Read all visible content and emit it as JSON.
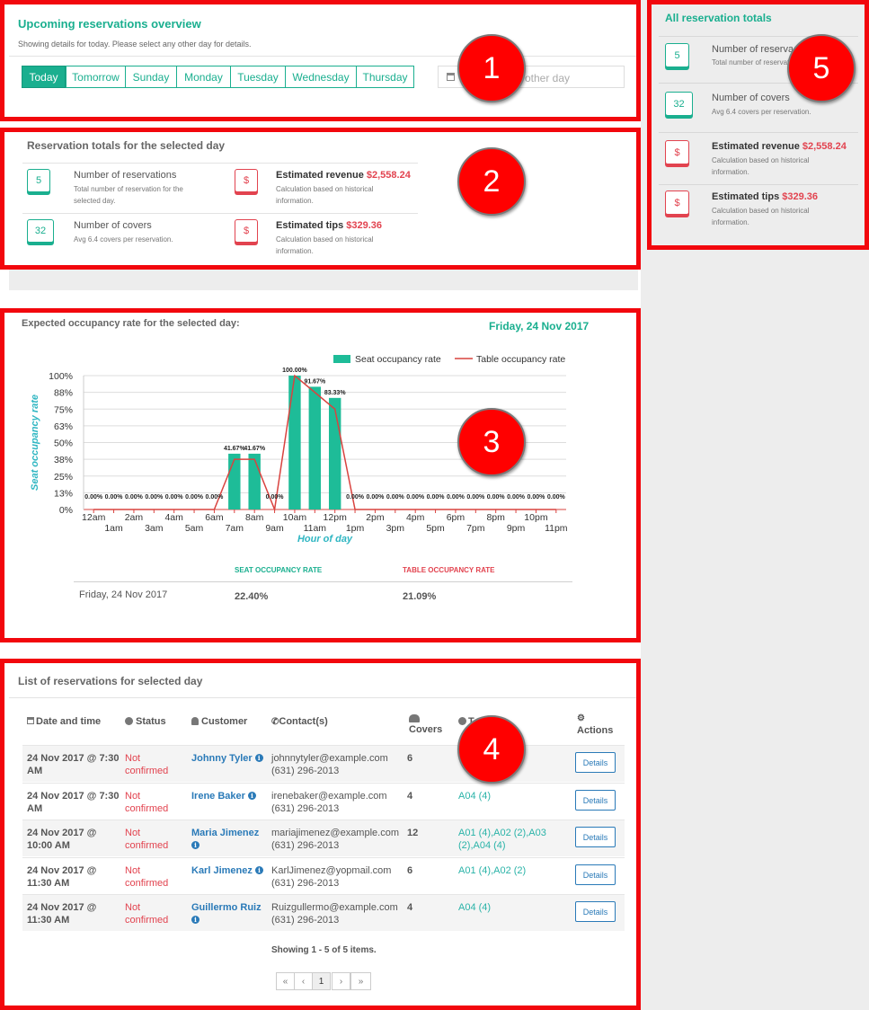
{
  "badges": [
    "1",
    "2",
    "3",
    "4",
    "5"
  ],
  "overview": {
    "title": "Upcoming reservations overview",
    "subtitle": "Showing details for today. Please select any other day for details.",
    "tabs": [
      "Today",
      "Tomorrow",
      "Sunday",
      "Monday",
      "Tuesday",
      "Wednesday",
      "Thursday"
    ],
    "active_tab": "Today",
    "date_placeholder": "other day"
  },
  "day_totals": {
    "title": "Reservation totals for the selected day",
    "reservations": {
      "value": "5",
      "label": "Number of reservations",
      "desc": "Total number of reservation for the selected day."
    },
    "covers": {
      "value": "32",
      "label": "Number of covers",
      "desc": "Avg 6.4 covers per reservation."
    },
    "revenue": {
      "icon": "$",
      "label": "Estimated revenue",
      "amount": "$2,558.24",
      "desc": "Calculation based on historical information."
    },
    "tips": {
      "icon": "$",
      "label": "Estimated tips",
      "amount": "$329.36",
      "desc": "Calculation based on historical information."
    }
  },
  "all_totals": {
    "title": "All reservation totals",
    "reservations": {
      "value": "5",
      "label": "Number of reservations",
      "desc": "Total number of reservation"
    },
    "covers": {
      "value": "32",
      "label": "Number of covers",
      "desc": "Avg 6.4 covers per reservation."
    },
    "revenue": {
      "icon": "$",
      "label": "Estimated revenue",
      "amount": "$2,558.24",
      "desc": "Calculation based on historical information."
    },
    "tips": {
      "icon": "$",
      "label": "Estimated tips",
      "amount": "$329.36",
      "desc": "Calculation based on historical information."
    }
  },
  "occupancy": {
    "title": "Expected occupancy rate for the selected day:",
    "date": "Friday, 24 Nov 2017",
    "summary_headers": [
      "SEAT OCCUPANCY RATE",
      "TABLE OCCUPANCY RATE"
    ],
    "summary_row": {
      "date": "Friday, 24 Nov 2017",
      "seat": "22.40%",
      "table": "21.09%"
    }
  },
  "chart_data": {
    "type": "bar",
    "categories": [
      "12am",
      "1am",
      "2am",
      "3am",
      "4am",
      "5am",
      "6am",
      "7am",
      "8am",
      "9am",
      "10am",
      "11am",
      "12pm",
      "1pm",
      "2pm",
      "3pm",
      "4pm",
      "5pm",
      "6pm",
      "7pm",
      "8pm",
      "9pm",
      "10pm",
      "11pm"
    ],
    "series": [
      {
        "name": "Seat occupancy rate",
        "type": "bar",
        "color": "#1ebc98",
        "values": [
          0,
          0,
          0,
          0,
          0,
          0,
          0,
          41.67,
          41.67,
          0,
          100,
          91.67,
          83.33,
          0,
          0,
          0,
          0,
          0,
          0,
          0,
          0,
          0,
          0,
          0
        ]
      },
      {
        "name": "Table occupancy rate",
        "type": "line",
        "color": "#d9433f",
        "values": [
          0,
          0,
          0,
          0,
          0,
          0,
          0,
          37.5,
          37.5,
          0,
          100,
          87.5,
          75,
          0,
          0,
          0,
          0,
          0,
          0,
          0,
          0,
          0,
          0,
          0
        ]
      }
    ],
    "data_labels": [
      "0.00%",
      "0.00%",
      "0.00%",
      "0.00%",
      "0.00%",
      "0.00%",
      "0.00%",
      "41.67%",
      "41.67%",
      "0.00%",
      "100.00%",
      "91.67%",
      "83.33%",
      "0.00%",
      "0.00%",
      "0.00%",
      "0.00%",
      "0.00%",
      "0.00%",
      "0.00%",
      "0.00%",
      "0.00%",
      "0.00%",
      "0.00%"
    ],
    "yticks": [
      "0%",
      "13%",
      "25%",
      "38%",
      "50%",
      "63%",
      "75%",
      "88%",
      "100%"
    ],
    "ylim": [
      0,
      100
    ],
    "xlabel": "Hour of day",
    "ylabel": "Seat occupancy rate",
    "legend": "top-right",
    "grid": true
  },
  "reservations": {
    "title": "List of reservations for selected day",
    "headers": {
      "date": "Date and time",
      "status": "Status",
      "customer": "Customer",
      "contact": "Contact(s)",
      "covers": "Covers",
      "tables": "T",
      "actions": "Actions"
    },
    "rows": [
      {
        "date": "24 Nov 2017 @ 7:30 AM",
        "status": "Not confirmed",
        "customer": "Johnny Tyler",
        "email": "johnnytyler@example.com",
        "phone": "(631) 296-2013",
        "covers": "6",
        "tables": "",
        "action": "Details"
      },
      {
        "date": "24 Nov 2017 @ 7:30 AM",
        "status": "Not confirmed",
        "customer": "Irene Baker",
        "email": "irenebaker@example.com",
        "phone": "(631) 296-2013",
        "covers": "4",
        "tables": "A04 (4)",
        "action": "Details"
      },
      {
        "date": "24 Nov 2017 @ 10:00 AM",
        "status": "Not confirmed",
        "customer": "Maria Jimenez",
        "email": "mariajimenez@example.com",
        "phone": "(631) 296-2013",
        "covers": "12",
        "tables": "A01 (4),A02 (2),A03 (2),A04 (4)",
        "action": "Details"
      },
      {
        "date": "24 Nov 2017 @ 11:30 AM",
        "status": "Not confirmed",
        "customer": "Karl Jimenez",
        "email": "KarlJimenez@yopmail.com",
        "phone": "(631) 296-2013",
        "covers": "6",
        "tables": "A01 (4),A02 (2)",
        "action": "Details"
      },
      {
        "date": "24 Nov 2017 @ 11:30 AM",
        "status": "Not confirmed",
        "customer": "Guillermo Ruiz",
        "email": "Ruizgullermo@example.com",
        "phone": "(631) 296-2013",
        "covers": "4",
        "tables": "A04 (4)",
        "action": "Details"
      }
    ],
    "footer": "Showing 1 - 5 of 5 items.",
    "pager": [
      "«",
      "‹",
      "1",
      "›",
      "»"
    ]
  }
}
